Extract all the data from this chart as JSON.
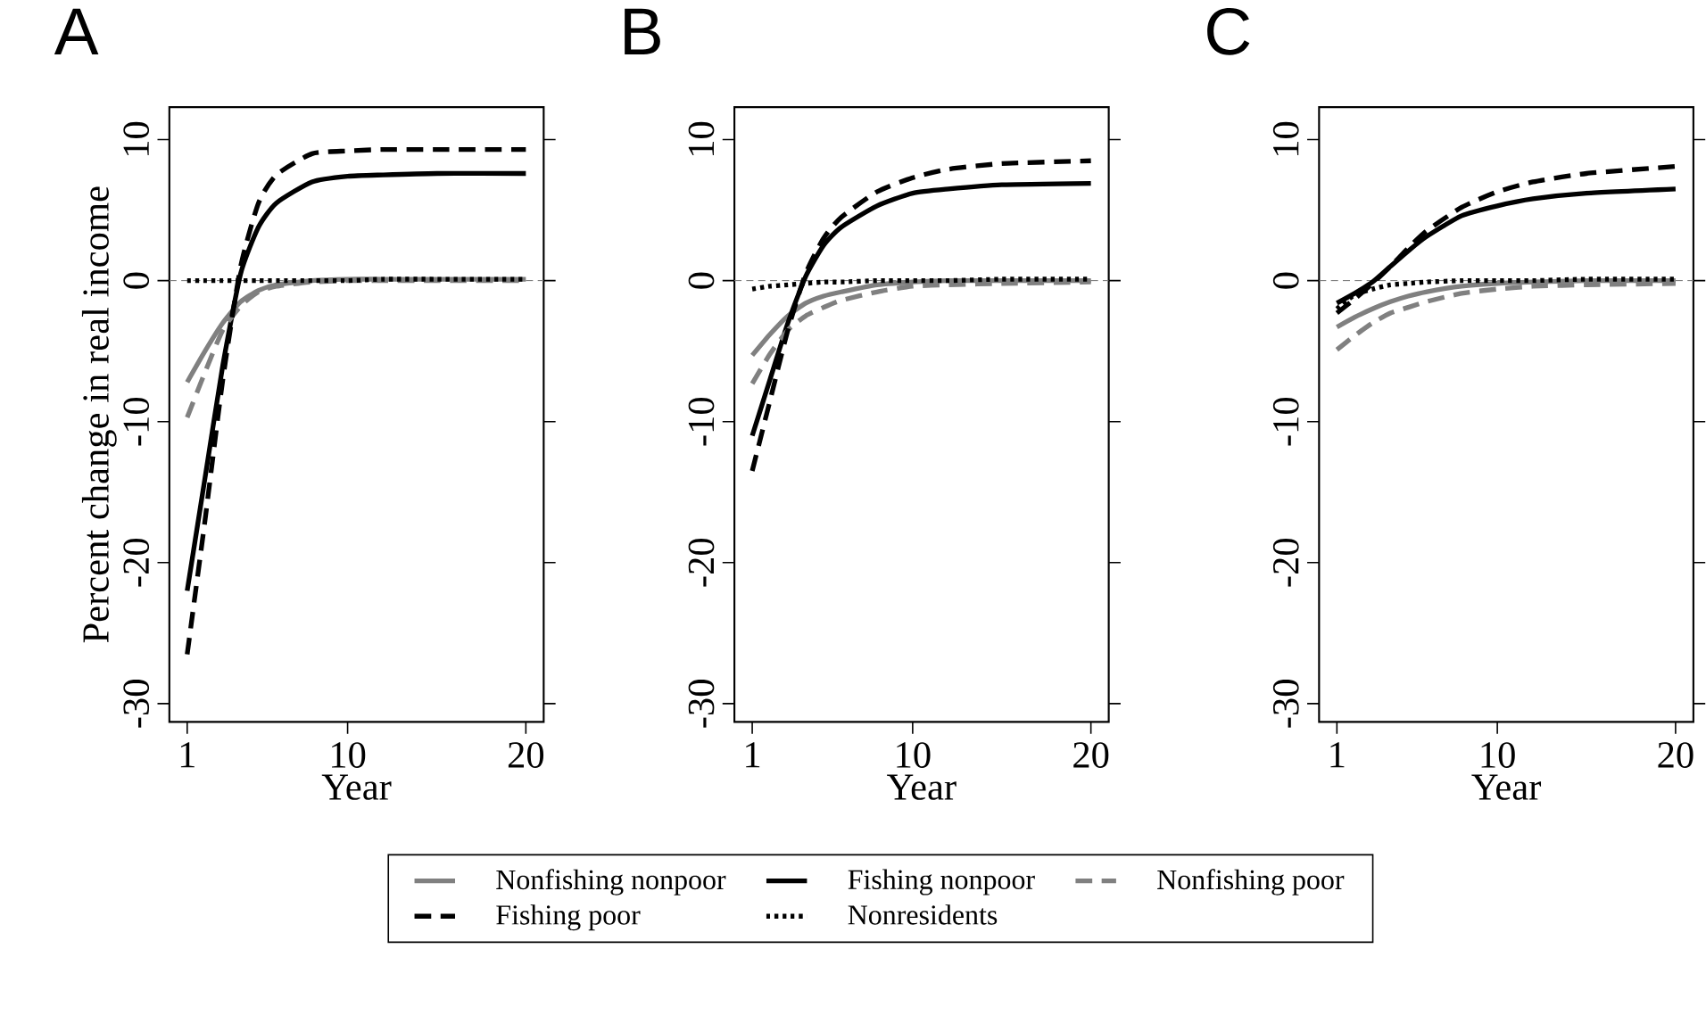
{
  "chart_data": [
    {
      "type": "line",
      "title": "A",
      "xlabel": "Year",
      "ylabel": "Percent change in real income",
      "x": [
        1,
        2,
        3,
        4,
        5,
        6,
        8,
        10,
        12,
        15,
        20
      ],
      "xlim": [
        0,
        21
      ],
      "ylim": [
        -31.3,
        12.3
      ],
      "xticks": [
        1,
        10,
        20
      ],
      "yticks": [
        -30,
        -20,
        -10,
        0,
        10
      ],
      "legend": "bottom",
      "ref_lines": [
        {
          "axis": "y",
          "value": 0,
          "color": "#808080",
          "line_style": "dashed"
        }
      ],
      "series": [
        {
          "name": "Nonfishing nonpoor",
          "color": "#808080",
          "line_style": "solid",
          "values": [
            -7.2,
            -5,
            -3,
            -1.5,
            -0.7,
            -0.3,
            0,
            0.1,
            0.1,
            0.1,
            0.1
          ]
        },
        {
          "name": "Fishing nonpoor",
          "color": "#000000",
          "line_style": "solid",
          "values": [
            -22,
            -14,
            -6,
            0.5,
            3.8,
            5.5,
            7,
            7.4,
            7.5,
            7.6,
            7.6
          ]
        },
        {
          "name": "Nonfishing poor",
          "color": "#808080",
          "line_style": "dashed",
          "values": [
            -9.7,
            -6.5,
            -3.5,
            -1.8,
            -0.8,
            -0.4,
            -0.1,
            0,
            0,
            0,
            0
          ]
        },
        {
          "name": "Fishing poor",
          "color": "#000000",
          "line_style": "dashed",
          "values": [
            -26.5,
            -17,
            -7,
            1,
            5.5,
            7.5,
            9,
            9.2,
            9.3,
            9.3,
            9.3
          ]
        },
        {
          "name": "Nonresidents",
          "color": "#000000",
          "line_style": "dotted",
          "values": [
            0,
            0,
            0,
            0,
            0,
            0,
            0,
            0,
            0.1,
            0.1,
            0.1
          ]
        }
      ]
    },
    {
      "type": "line",
      "title": "B",
      "xlabel": "Year",
      "x": [
        1,
        2,
        3,
        4,
        5,
        6,
        8,
        10,
        12,
        15,
        20
      ],
      "xlim": [
        0,
        21
      ],
      "ylim": [
        -31.3,
        12.3
      ],
      "xticks": [
        1,
        10,
        20
      ],
      "yticks": [
        -30,
        -20,
        -10,
        0,
        10
      ],
      "ref_lines": [
        {
          "axis": "y",
          "value": 0,
          "color": "#808080",
          "line_style": "dashed"
        }
      ],
      "series": [
        {
          "color": "#808080",
          "line_style": "solid",
          "values": [
            -5.3,
            -3.8,
            -2.5,
            -1.6,
            -1.1,
            -0.8,
            -0.3,
            -0.1,
            0,
            0,
            0
          ]
        },
        {
          "color": "#000000",
          "line_style": "solid",
          "values": [
            -11,
            -7,
            -3,
            0.3,
            2.5,
            3.8,
            5.3,
            6.2,
            6.5,
            6.8,
            6.9
          ]
        },
        {
          "color": "#808080",
          "line_style": "dashed",
          "values": [
            -7.3,
            -5.2,
            -3.5,
            -2.5,
            -1.9,
            -1.4,
            -0.8,
            -0.4,
            -0.3,
            -0.2,
            -0.1
          ]
        },
        {
          "color": "#000000",
          "line_style": "dashed",
          "values": [
            -13.5,
            -8.5,
            -3.5,
            0.5,
            3,
            4.5,
            6.3,
            7.3,
            7.9,
            8.3,
            8.5
          ]
        },
        {
          "color": "#000000",
          "line_style": "dotted",
          "values": [
            -0.6,
            -0.4,
            -0.3,
            -0.2,
            -0.1,
            -0.1,
            0,
            0,
            0,
            0.1,
            0.1
          ]
        }
      ]
    },
    {
      "type": "line",
      "title": "C",
      "xlabel": "Year",
      "x": [
        1,
        2,
        3,
        4,
        5,
        6,
        8,
        10,
        12,
        15,
        20
      ],
      "xlim": [
        0,
        21
      ],
      "ylim": [
        -31.3,
        12.3
      ],
      "xticks": [
        1,
        10,
        20
      ],
      "yticks": [
        -30,
        -20,
        -10,
        0,
        10
      ],
      "ref_lines": [
        {
          "axis": "y",
          "value": 0,
          "color": "#808080",
          "line_style": "dashed"
        }
      ],
      "series": [
        {
          "color": "#808080",
          "line_style": "solid",
          "values": [
            -3.3,
            -2.6,
            -2,
            -1.5,
            -1.1,
            -0.8,
            -0.4,
            -0.2,
            -0.1,
            0,
            0
          ]
        },
        {
          "color": "#000000",
          "line_style": "solid",
          "values": [
            -1.6,
            -0.9,
            -0.1,
            1,
            2.1,
            3.1,
            4.6,
            5.3,
            5.8,
            6.2,
            6.5
          ]
        },
        {
          "color": "#808080",
          "line_style": "dashed",
          "values": [
            -4.9,
            -3.9,
            -3,
            -2.3,
            -1.9,
            -1.5,
            -0.9,
            -0.6,
            -0.4,
            -0.3,
            -0.2
          ]
        },
        {
          "color": "#000000",
          "line_style": "dashed",
          "values": [
            -2.3,
            -1.3,
            -0.2,
            1,
            2.3,
            3.5,
            5.2,
            6.3,
            7,
            7.6,
            8.1
          ]
        },
        {
          "color": "#000000",
          "line_style": "dotted",
          "values": [
            -2,
            -1,
            -0.6,
            -0.3,
            -0.2,
            -0.1,
            0,
            0,
            0,
            0.1,
            0.1
          ]
        }
      ]
    }
  ]
}
